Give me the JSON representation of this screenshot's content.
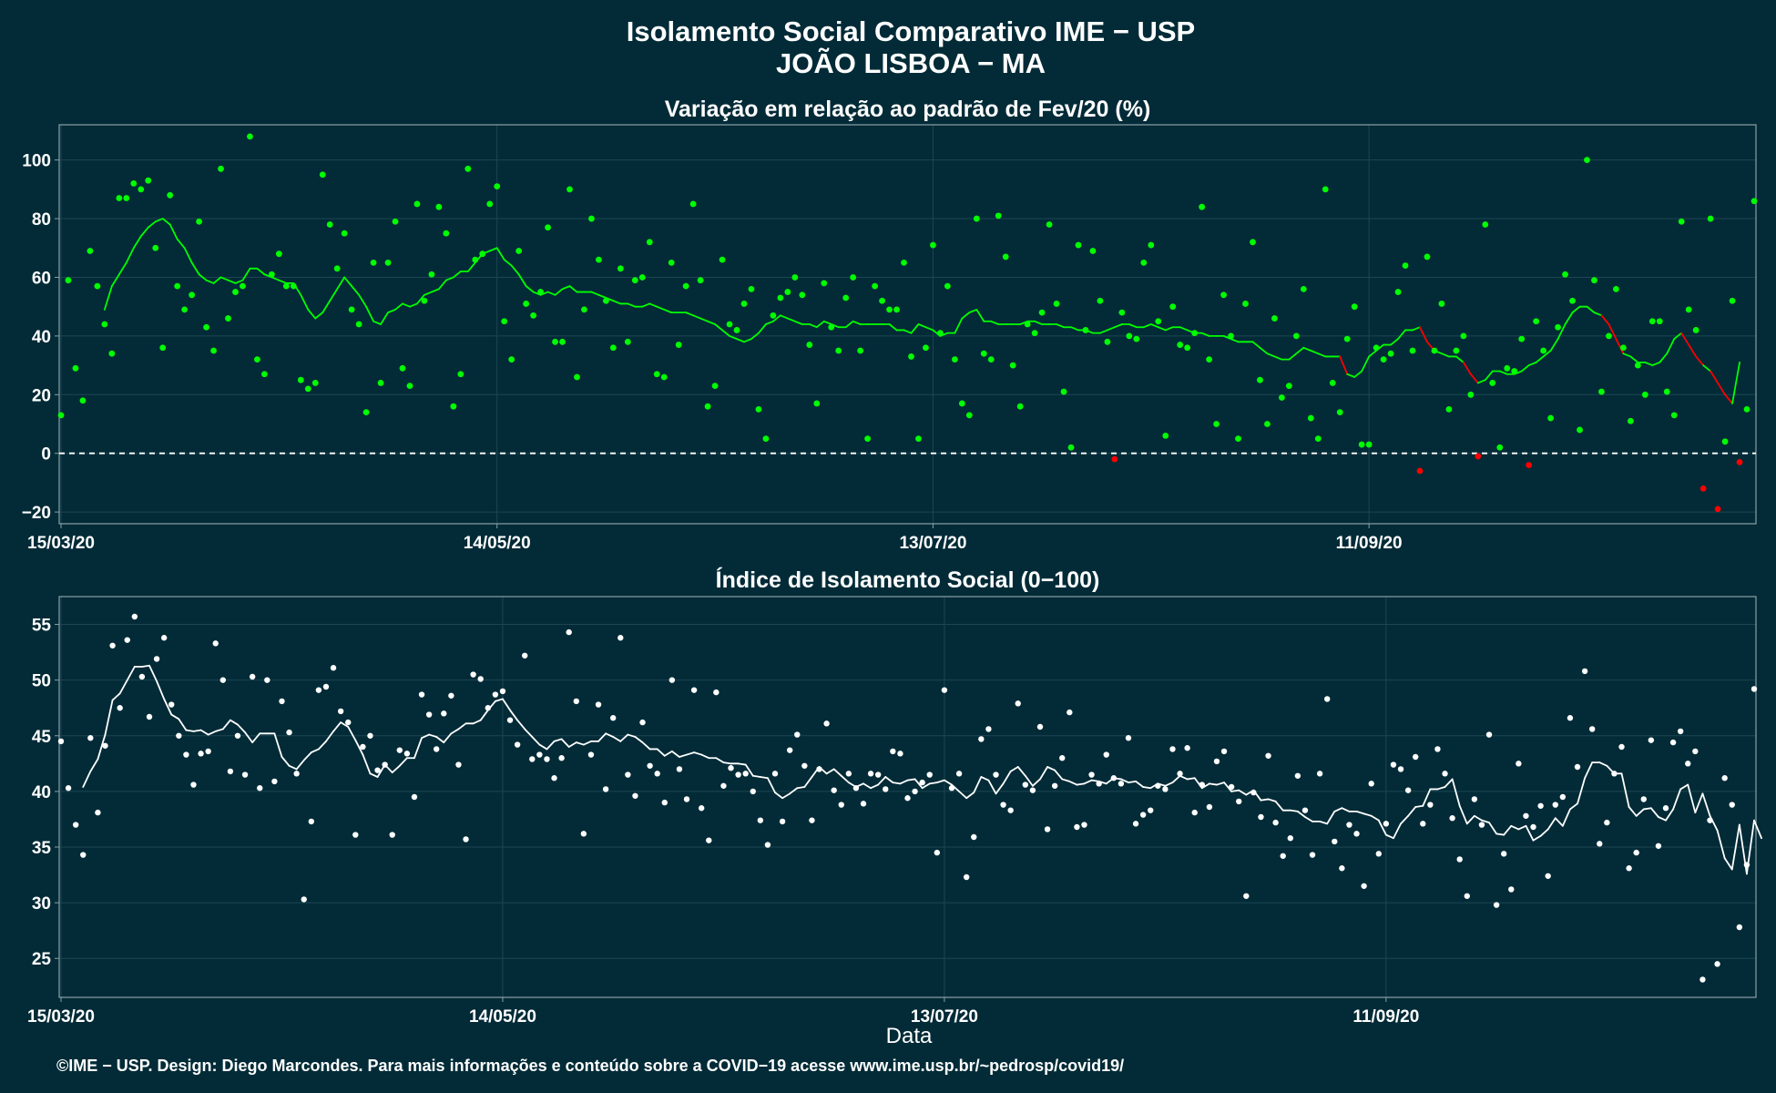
{
  "title_line1": "Isolamento Social Comparativo IME − USP",
  "title_line2": "JOÃO LISBOA − MA",
  "xlabel": "Data",
  "footer": "©IME − USP. Design: Diego Marcondes. Para mais informações e conteúdo sobre a COVID−19 acesse www.ime.usp.br/~pedrosp/covid19/",
  "colors": {
    "background": "#022b37",
    "panel_border": "#8aa0a6",
    "grid": "#1d4652",
    "positive": "#00ff00",
    "negative": "#ff0000",
    "index": "#ffffff"
  },
  "chart_data": [
    {
      "type": "scatter",
      "title": "Variação em relação ao padrão de Fev/20 (%)",
      "x_start": "2020-03-15",
      "x_end": "2020-10-31",
      "x_ticks": [
        "15/03/20",
        "14/05/20",
        "13/07/20",
        "11/09/20"
      ],
      "y_ticks": [
        -20,
        0,
        20,
        40,
        60,
        80,
        100
      ],
      "ylim": [
        -24,
        112
      ],
      "reference_line": 0,
      "points_color_rule": "verde se ≥ 0, vermelho se < 0",
      "series": [
        {
          "role": "daily",
          "values": [
            13,
            59,
            29,
            18,
            69,
            57,
            44,
            34,
            87,
            87,
            92,
            90,
            93,
            70,
            36,
            88,
            57,
            49,
            54,
            79,
            43,
            35,
            97,
            46,
            55,
            57,
            108,
            32,
            27,
            61,
            68,
            57,
            57,
            25,
            22,
            24,
            95,
            78,
            63,
            75,
            49,
            44,
            14,
            65,
            24,
            65,
            79,
            29,
            23,
            85,
            52,
            61,
            84,
            75,
            16,
            27,
            97,
            66,
            68,
            85,
            91,
            45,
            32,
            69,
            51,
            47,
            55,
            77,
            38,
            38,
            90,
            26,
            49,
            80,
            66,
            52,
            36,
            63,
            38,
            59,
            60,
            72,
            27,
            26,
            65,
            37,
            57,
            85,
            59,
            16,
            23,
            66,
            44,
            42,
            51,
            56,
            15,
            5,
            47,
            53,
            55,
            60,
            54,
            37,
            17,
            58,
            43,
            35,
            53,
            60,
            35,
            5,
            57,
            52,
            49,
            49,
            65,
            33,
            5,
            36,
            71,
            41,
            57,
            32,
            17,
            13,
            80,
            34,
            32,
            81,
            67,
            30,
            16,
            44,
            41,
            48,
            78,
            51,
            21,
            2,
            71,
            42,
            69,
            52,
            38,
            -2,
            48,
            40,
            39,
            65,
            71,
            45,
            6,
            50,
            37,
            36,
            41,
            84,
            32,
            10,
            54,
            40,
            5,
            51,
            72,
            25,
            10,
            46,
            19,
            23,
            40,
            56,
            12,
            5,
            90,
            24,
            14,
            39,
            50,
            3,
            3,
            36,
            32,
            34,
            55,
            64,
            35,
            -6,
            67,
            35,
            51,
            15,
            35,
            40,
            20,
            -1,
            78,
            24,
            2,
            29,
            28,
            39,
            -4,
            45,
            35,
            12,
            43,
            61,
            52,
            8,
            100,
            59,
            21,
            40,
            56,
            36,
            11,
            30,
            20,
            45,
            45,
            21,
            13,
            79,
            49,
            42,
            -12,
            80,
            -19,
            4,
            52,
            -3,
            15,
            86
          ]
        },
        {
          "role": "moving_average",
          "values": [
            null,
            null,
            null,
            null,
            null,
            null,
            49,
            57,
            61,
            65,
            70,
            74,
            77,
            79,
            80,
            78,
            73,
            70,
            65,
            61,
            59,
            58,
            60,
            59,
            58,
            59,
            63,
            63,
            61,
            60,
            59,
            58,
            58,
            54,
            49,
            46,
            48,
            52,
            56,
            60,
            57,
            54,
            50,
            45,
            44,
            48,
            49,
            51,
            50,
            51,
            54,
            55,
            56,
            59,
            60,
            62,
            62,
            65,
            68,
            69,
            70,
            66,
            64,
            61,
            57,
            55,
            54,
            55,
            54,
            56,
            57,
            55,
            55,
            55,
            54,
            53,
            52,
            51,
            51,
            50,
            50,
            51,
            50,
            49,
            48,
            48,
            48,
            47,
            46,
            45,
            44,
            42,
            40,
            39,
            38,
            39,
            41,
            44,
            45,
            47,
            46,
            45,
            44,
            44,
            43,
            45,
            44,
            43,
            43,
            45,
            44,
            44,
            44,
            44,
            44,
            42,
            42,
            41,
            44,
            43,
            42,
            40,
            41,
            41,
            46,
            48,
            49,
            45,
            45,
            44,
            44,
            44,
            44,
            45,
            45,
            44,
            44,
            44,
            43,
            43,
            42,
            42,
            41,
            41,
            42,
            43,
            44,
            44,
            43,
            43,
            44,
            43,
            42,
            43,
            43,
            42,
            41,
            41,
            40,
            40,
            40,
            39,
            38,
            38,
            38,
            36,
            34,
            33,
            32,
            32,
            34,
            36,
            35,
            34,
            33,
            33,
            33,
            27,
            26,
            28,
            33,
            35,
            37,
            37,
            39,
            42,
            42,
            43,
            38,
            35,
            34,
            33,
            33,
            31,
            27,
            24,
            25,
            28,
            28,
            27,
            27,
            28,
            30,
            31,
            33,
            35,
            39,
            44,
            48,
            50,
            50,
            48,
            47,
            44,
            39,
            34,
            33,
            31,
            31,
            30,
            31,
            34,
            39,
            41,
            37,
            33,
            30,
            28,
            24,
            20,
            17,
            31
          ]
        }
      ]
    },
    {
      "type": "scatter",
      "title": "Índice de Isolamento Social (0−100)",
      "x_start": "2020-03-15",
      "x_end": "2020-10-31",
      "x_ticks": [
        "15/03/20",
        "14/05/20",
        "13/07/20",
        "11/09/20"
      ],
      "y_ticks": [
        25,
        30,
        35,
        40,
        45,
        50,
        55
      ],
      "ylim": [
        21.5,
        57.5
      ],
      "series": [
        {
          "role": "daily",
          "values": [
            44.5,
            40.3,
            37,
            34.3,
            44.8,
            38.1,
            44.1,
            53.1,
            47.5,
            53.6,
            55.7,
            50.3,
            46.7,
            51.9,
            53.8,
            47.8,
            45,
            43.3,
            40.6,
            43.4,
            43.6,
            53.3,
            50,
            41.8,
            45,
            41.5,
            50.3,
            40.3,
            50,
            40.9,
            48.1,
            45.3,
            41.6,
            30.3,
            37.3,
            49.1,
            49.4,
            51.1,
            47.2,
            46.2,
            36.1,
            44,
            45,
            41.9,
            42.4,
            36.1,
            43.7,
            43.4,
            39.5,
            48.7,
            46.9,
            43.8,
            47,
            48.6,
            42.4,
            35.7,
            50.5,
            50.1,
            47.5,
            48.7,
            49,
            46.4,
            44.2,
            52.2,
            42.9,
            43.3,
            42.9,
            41.2,
            43,
            54.3,
            48.1,
            36.2,
            43.3,
            47.8,
            40.2,
            46.6,
            53.8,
            41.5,
            39.6,
            46.2,
            42.3,
            41.6,
            39,
            50,
            42,
            39.3,
            49.1,
            38.5,
            35.6,
            48.9,
            40.5,
            42.1,
            41.5,
            41.6,
            40,
            37.4,
            35.2,
            41.6,
            37.3,
            43.7,
            45.1,
            42.3,
            37.4,
            42,
            46.1,
            40.1,
            38.8,
            41.6,
            40.3,
            38.9,
            41.6,
            41.5,
            40.2,
            43.6,
            43.4,
            39.4,
            40,
            40.8,
            41.5,
            34.5,
            49.1,
            40.3,
            41.6,
            32.3,
            35.9,
            44.7,
            45.6,
            41.5,
            38.8,
            38.3,
            47.9,
            40.6,
            40.1,
            45.8,
            36.6,
            40.5,
            43,
            47.1,
            36.8,
            37,
            41.5,
            40.7,
            43.3,
            41.2,
            40.7,
            44.8,
            37.1,
            37.9,
            38.3,
            40.5,
            40.2,
            43.8,
            41.6,
            43.9,
            38.1,
            40.6,
            38.6,
            42.7,
            43.6,
            40.4,
            39.1,
            30.6,
            39.9,
            37.7,
            43.2,
            37.2,
            34.2,
            35.8,
            41.4,
            38.3,
            34.3,
            41.6,
            48.3,
            35.5,
            33.1,
            37,
            36.2,
            31.5,
            40.7,
            34.4,
            37.1,
            42.4,
            42,
            40.1,
            43.1,
            37.1,
            38.8,
            43.8,
            41.6,
            37.6,
            33.9,
            30.6,
            39.3,
            37,
            45.1,
            29.8,
            34.4,
            31.2,
            42.5,
            37.8,
            36.8,
            38.7,
            32.4,
            38.8,
            39.5,
            46.6,
            42.2,
            50.8,
            45.6,
            35.3,
            37.2,
            41.6,
            44,
            33.1,
            34.5,
            39.3,
            44.6,
            35.1,
            38.5,
            44.4,
            45.4,
            42.5,
            43.6,
            23.1,
            37.4,
            24.5,
            41.2,
            38.8,
            27.8,
            33.4,
            49.2
          ]
        },
        {
          "role": "moving_average",
          "values": [
            null,
            null,
            null,
            40.4,
            41.8,
            42.9,
            45.1,
            48.2,
            48.8,
            50,
            51.2,
            51.2,
            51.3,
            49.9,
            48.3,
            46.9,
            46.5,
            45.5,
            45.4,
            45.5,
            45.1,
            45.4,
            45.6,
            46.4,
            46,
            45.3,
            44.4,
            45.2,
            45.2,
            45.2,
            43.1,
            42.3,
            42,
            42.8,
            43.5,
            43.8,
            44.5,
            45.4,
            46.2,
            45.8,
            44.6,
            43.3,
            41.6,
            41.3,
            42.4,
            41.7,
            42.3,
            43,
            43,
            44.8,
            45.1,
            44.9,
            44.4,
            45.2,
            45.6,
            46.1,
            46.1,
            46.4,
            47.3,
            48.1,
            48.3,
            47.3,
            46.4,
            45.6,
            44.9,
            44.2,
            43.8,
            44.5,
            44.7,
            44,
            44.4,
            44.2,
            44.5,
            44.5,
            45.2,
            44.9,
            44.5,
            45.1,
            44.9,
            44.4,
            43.8,
            43.8,
            43.2,
            43.6,
            43.1,
            43.3,
            43.5,
            43.3,
            43,
            43,
            42.6,
            42.5,
            42.5,
            42.4,
            41.4,
            41.3,
            41.2,
            39.9,
            39.4,
            39.8,
            40.3,
            40.4,
            41.3,
            42.2,
            41.6,
            42,
            41.4,
            40.8,
            40.4,
            40.7,
            40.3,
            40.6,
            41.3,
            40.8,
            40.7,
            41,
            41.1,
            40.3,
            40.7,
            40.8,
            41,
            40.6,
            40,
            39.4,
            39.9,
            41.3,
            41,
            39.8,
            40.7,
            41.8,
            42.2,
            41.4,
            40.5,
            41.1,
            42.2,
            41.9,
            41.1,
            40.9,
            40.6,
            40.7,
            41,
            40.9,
            40.7,
            41.2,
            41.1,
            40.8,
            40.9,
            40.4,
            40.3,
            40.7,
            40.5,
            40.8,
            41.4,
            41.1,
            41.2,
            40.3,
            40.7,
            40.6,
            40.8,
            40,
            40.1,
            39.7,
            40.1,
            39.2,
            39.3,
            39.1,
            38.3,
            38.3,
            38.2,
            37.7,
            37.3,
            37.3,
            37.1,
            38.2,
            38.5,
            38.2,
            38.2,
            38,
            37.8,
            37.4,
            36.1,
            35.8,
            37.1,
            37.8,
            38.6,
            38.7,
            40.2,
            40.2,
            40.4,
            41.1,
            38.7,
            37.1,
            37.8,
            37.4,
            37.2,
            36.2,
            36.1,
            36.9,
            36.6,
            36.9,
            35.6,
            36,
            36.6,
            37.6,
            36.9,
            38.4,
            38.9,
            41.2,
            42.6,
            42.6,
            42.3,
            41.6,
            41.6,
            38.6,
            37.8,
            38.4,
            38.5,
            37.7,
            37.4,
            38.4,
            40.2,
            40.6,
            38.1,
            39.8,
            37.8,
            36.5,
            34,
            33,
            37,
            32.6,
            37.4,
            35.8
          ]
        }
      ]
    }
  ]
}
